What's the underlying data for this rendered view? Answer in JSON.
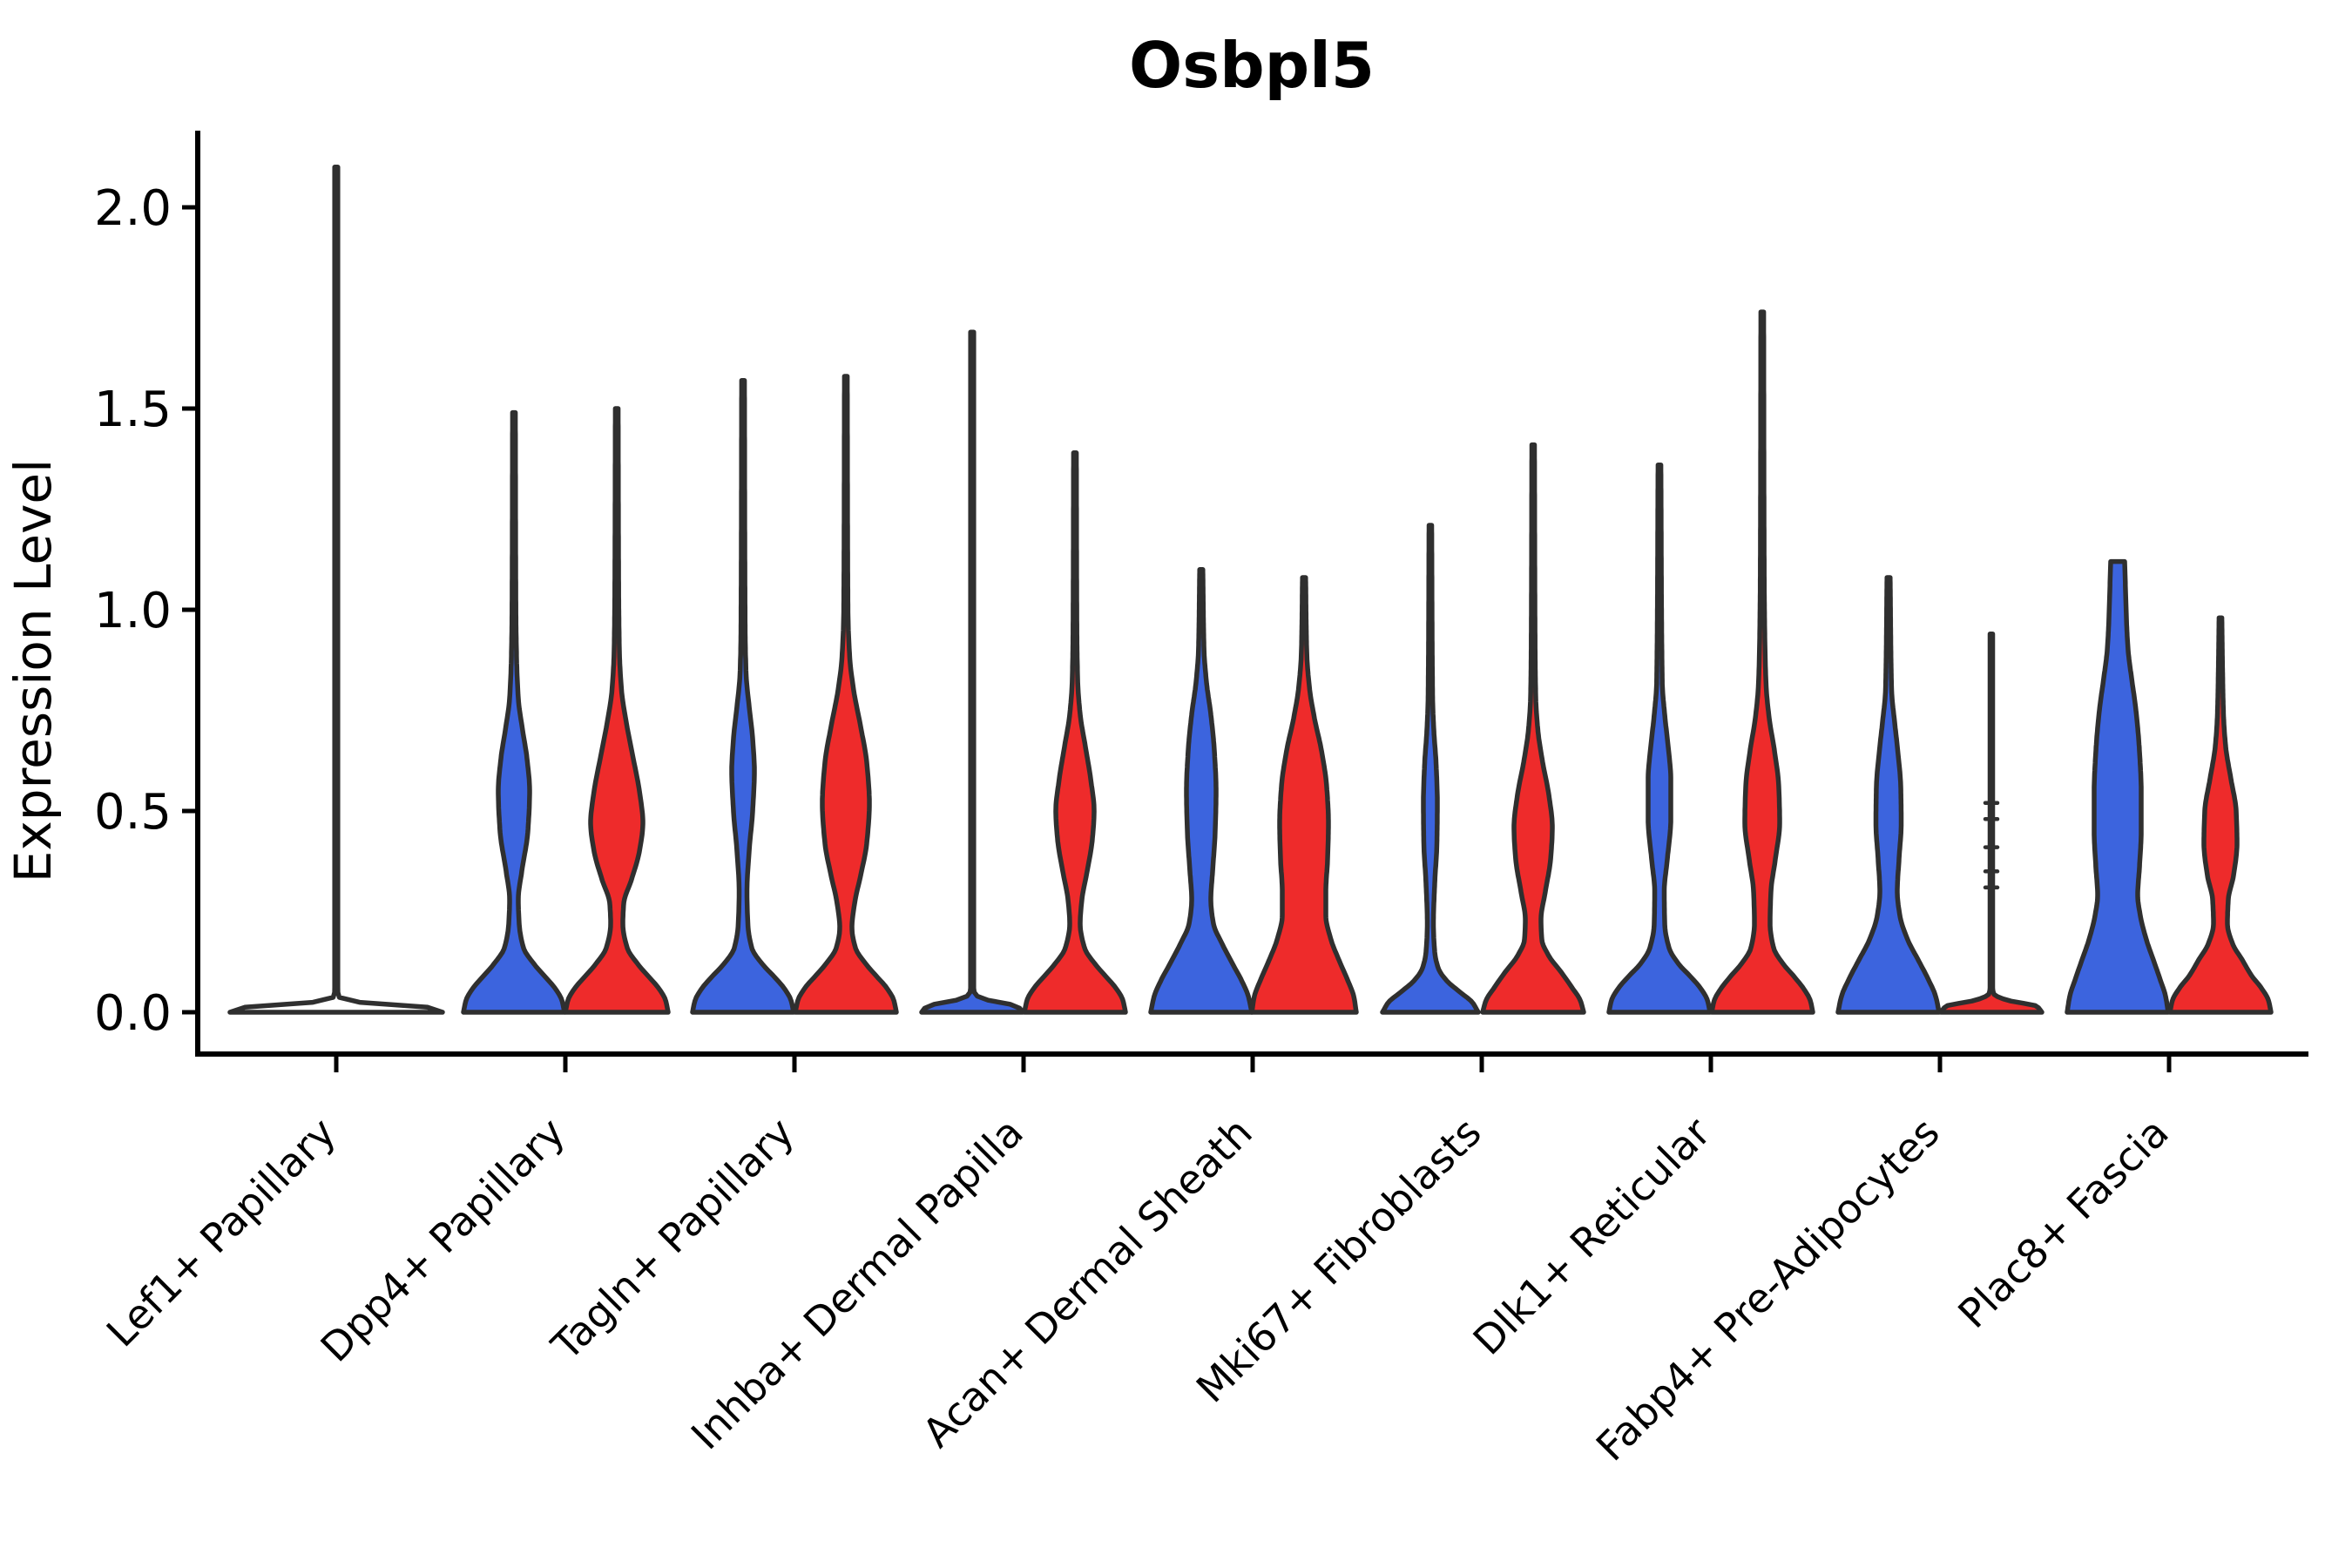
{
  "title": "Osbpl5",
  "y_axis": {
    "label": "Expression Level",
    "ticks": [
      "0.0",
      "0.5",
      "1.0",
      "1.5",
      "2.0"
    ]
  },
  "x_axis": {
    "categories": [
      "Lef1+ Papillary",
      "Dpp4+ Papillary",
      "Tagln+ Papillary",
      "Inhba+ Dermal Papilla",
      "Acan+ Dermal Sheath",
      "Mki67+ Fibroblasts",
      "Dlk1+ Reticular",
      "Fabp4+ Pre-Adipocytes",
      "Plac8+ Fascia"
    ]
  },
  "colors": {
    "blue": "#3C64DE",
    "red": "#EE2B2B",
    "outline": "#2F2F2F",
    "axis": "#000000"
  },
  "chart_data": {
    "type": "violin",
    "title": "Osbpl5",
    "xlabel": "",
    "ylabel": "Expression Level",
    "ylim": [
      -0.06,
      2.2
    ],
    "yticks": [
      0.0,
      0.5,
      1.0,
      1.5,
      2.0
    ],
    "grid": false,
    "legend": "none",
    "categories": [
      "Lef1+ Papillary",
      "Dpp4+ Papillary",
      "Tagln+ Papillary",
      "Inhba+ Dermal Papilla",
      "Acan+ Dermal Sheath",
      "Mki67+ Fibroblasts",
      "Dlk1+ Reticular",
      "Fabp4+ Pre-Adipocytes",
      "Plac8+ Fascia"
    ],
    "series": [
      {
        "name": "group-blue",
        "color": "#3C64DE",
        "max_values": [
          null,
          1.49,
          1.57,
          1.69,
          1.1,
          1.21,
          1.36,
          1.08,
          1.12
        ]
      },
      {
        "name": "group-red",
        "color": "#EE2B2B",
        "max_values": [
          null,
          1.5,
          1.58,
          1.39,
          1.08,
          1.41,
          1.74,
          0.94,
          0.98
        ]
      }
    ],
    "single_violin_max": {
      "Lef1+ Papillary": 2.1
    },
    "violins": [
      {
        "category": 0,
        "side": "single",
        "color": "none",
        "max": 2.1,
        "profile": [
          [
            0,
            122
          ],
          [
            0.012,
            106
          ],
          [
            0.025,
            26
          ],
          [
            0.04,
            2.2
          ],
          [
            0.06,
            1.8
          ],
          [
            2.1,
            1.8
          ]
        ]
      },
      {
        "category": 1,
        "side": "blue",
        "color": "blue",
        "max": 1.49,
        "profile": [
          [
            0,
            58
          ],
          [
            0.03,
            55
          ],
          [
            0.06,
            47
          ],
          [
            0.09,
            35
          ],
          [
            0.12,
            23
          ],
          [
            0.16,
            11
          ],
          [
            0.22,
            6
          ],
          [
            0.28,
            5
          ],
          [
            0.35,
            9
          ],
          [
            0.45,
            16
          ],
          [
            0.55,
            18
          ],
          [
            0.63,
            15
          ],
          [
            0.7,
            10
          ],
          [
            0.78,
            5
          ],
          [
            0.88,
            3
          ],
          [
            1.0,
            2.2
          ],
          [
            1.49,
            1.6
          ]
        ]
      },
      {
        "category": 1,
        "side": "red",
        "color": "red",
        "max": 1.5,
        "profile": [
          [
            0,
            59
          ],
          [
            0.03,
            56
          ],
          [
            0.06,
            48
          ],
          [
            0.09,
            36
          ],
          [
            0.12,
            24
          ],
          [
            0.16,
            12
          ],
          [
            0.22,
            7
          ],
          [
            0.27,
            8
          ],
          [
            0.33,
            17
          ],
          [
            0.4,
            26
          ],
          [
            0.47,
            30
          ],
          [
            0.55,
            26
          ],
          [
            0.63,
            19
          ],
          [
            0.72,
            11
          ],
          [
            0.8,
            5.5
          ],
          [
            0.9,
            3
          ],
          [
            1.05,
            2.2
          ],
          [
            1.5,
            1.6
          ]
        ]
      },
      {
        "category": 2,
        "side": "blue",
        "color": "blue",
        "max": 1.57,
        "profile": [
          [
            0,
            58
          ],
          [
            0.03,
            55
          ],
          [
            0.06,
            47
          ],
          [
            0.09,
            35
          ],
          [
            0.12,
            22
          ],
          [
            0.16,
            10
          ],
          [
            0.22,
            5.5
          ],
          [
            0.3,
            4.5
          ],
          [
            0.4,
            7
          ],
          [
            0.5,
            11
          ],
          [
            0.6,
            13
          ],
          [
            0.68,
            11
          ],
          [
            0.76,
            7
          ],
          [
            0.84,
            3.5
          ],
          [
            0.95,
            2.4
          ],
          [
            1.57,
            1.6
          ]
        ]
      },
      {
        "category": 2,
        "side": "red",
        "color": "red",
        "max": 1.58,
        "profile": [
          [
            0,
            58
          ],
          [
            0.03,
            55
          ],
          [
            0.06,
            47
          ],
          [
            0.09,
            35
          ],
          [
            0.12,
            23
          ],
          [
            0.16,
            11
          ],
          [
            0.21,
            7
          ],
          [
            0.27,
            10
          ],
          [
            0.34,
            17
          ],
          [
            0.42,
            24
          ],
          [
            0.52,
            27
          ],
          [
            0.62,
            24
          ],
          [
            0.71,
            17
          ],
          [
            0.8,
            9
          ],
          [
            0.88,
            4.5
          ],
          [
            1.0,
            2.4
          ],
          [
            1.58,
            1.6
          ]
        ]
      },
      {
        "category": 3,
        "side": "blue",
        "color": "blue",
        "max": 1.69,
        "profile": [
          [
            0,
            58
          ],
          [
            0.015,
            52
          ],
          [
            0.03,
            18
          ],
          [
            0.045,
            3
          ],
          [
            0.06,
            1.8
          ],
          [
            1.69,
            1.8
          ]
        ]
      },
      {
        "category": 3,
        "side": "red",
        "color": "red",
        "max": 1.39,
        "profile": [
          [
            0,
            58
          ],
          [
            0.03,
            55
          ],
          [
            0.06,
            47
          ],
          [
            0.09,
            35
          ],
          [
            0.12,
            23
          ],
          [
            0.16,
            11
          ],
          [
            0.22,
            6
          ],
          [
            0.28,
            8
          ],
          [
            0.35,
            14
          ],
          [
            0.43,
            20
          ],
          [
            0.5,
            22
          ],
          [
            0.58,
            18
          ],
          [
            0.66,
            12
          ],
          [
            0.74,
            6
          ],
          [
            0.82,
            3.2
          ],
          [
            0.95,
            2.2
          ],
          [
            1.39,
            1.6
          ]
        ]
      },
      {
        "category": 4,
        "side": "blue",
        "color": "blue",
        "max": 1.1,
        "profile": [
          [
            0,
            58
          ],
          [
            0.04,
            54
          ],
          [
            0.08,
            46
          ],
          [
            0.12,
            36
          ],
          [
            0.17,
            24
          ],
          [
            0.22,
            14
          ],
          [
            0.28,
            11
          ],
          [
            0.35,
            13
          ],
          [
            0.45,
            16
          ],
          [
            0.55,
            17
          ],
          [
            0.65,
            15
          ],
          [
            0.74,
            11
          ],
          [
            0.82,
            6
          ],
          [
            0.9,
            3.2
          ],
          [
            1.1,
            1.8
          ]
        ]
      },
      {
        "category": 4,
        "side": "red",
        "color": "red",
        "max": 1.08,
        "profile": [
          [
            0,
            60
          ],
          [
            0.04,
            57
          ],
          [
            0.08,
            50
          ],
          [
            0.13,
            40
          ],
          [
            0.18,
            31
          ],
          [
            0.24,
            25
          ],
          [
            0.3,
            25
          ],
          [
            0.38,
            27
          ],
          [
            0.47,
            28
          ],
          [
            0.56,
            26
          ],
          [
            0.65,
            20
          ],
          [
            0.73,
            12
          ],
          [
            0.81,
            6
          ],
          [
            0.9,
            3
          ],
          [
            1.08,
            1.8
          ]
        ]
      },
      {
        "category": 5,
        "side": "blue",
        "color": "blue",
        "max": 1.21,
        "profile": [
          [
            0,
            55
          ],
          [
            0.025,
            48
          ],
          [
            0.05,
            34
          ],
          [
            0.08,
            18
          ],
          [
            0.11,
            9
          ],
          [
            0.15,
            5
          ],
          [
            0.22,
            3.5
          ],
          [
            0.32,
            5
          ],
          [
            0.42,
            7.5
          ],
          [
            0.52,
            8
          ],
          [
            0.62,
            6.5
          ],
          [
            0.7,
            4
          ],
          [
            0.78,
            2.6
          ],
          [
            1.21,
            1.5
          ]
        ]
      },
      {
        "category": 5,
        "side": "red",
        "color": "red",
        "max": 1.41,
        "profile": [
          [
            0,
            58
          ],
          [
            0.03,
            54
          ],
          [
            0.06,
            45
          ],
          [
            0.1,
            32
          ],
          [
            0.14,
            18
          ],
          [
            0.18,
            10
          ],
          [
            0.23,
            9
          ],
          [
            0.3,
            14
          ],
          [
            0.38,
            20
          ],
          [
            0.46,
            22
          ],
          [
            0.54,
            18
          ],
          [
            0.62,
            11
          ],
          [
            0.7,
            5.5
          ],
          [
            0.78,
            3
          ],
          [
            0.92,
            2.2
          ],
          [
            1.41,
            1.5
          ]
        ]
      },
      {
        "category": 6,
        "side": "blue",
        "color": "blue",
        "max": 1.36,
        "profile": [
          [
            0,
            58
          ],
          [
            0.03,
            55
          ],
          [
            0.06,
            47
          ],
          [
            0.09,
            35
          ],
          [
            0.12,
            22
          ],
          [
            0.16,
            11
          ],
          [
            0.22,
            6
          ],
          [
            0.3,
            5.5
          ],
          [
            0.38,
            9
          ],
          [
            0.48,
            13
          ],
          [
            0.58,
            13
          ],
          [
            0.66,
            10
          ],
          [
            0.74,
            6
          ],
          [
            0.82,
            3.2
          ],
          [
            1.36,
            1.6
          ]
        ]
      },
      {
        "category": 6,
        "side": "red",
        "color": "red",
        "max": 1.74,
        "profile": [
          [
            0,
            58
          ],
          [
            0.03,
            55
          ],
          [
            0.06,
            47
          ],
          [
            0.09,
            36
          ],
          [
            0.12,
            24
          ],
          [
            0.16,
            13
          ],
          [
            0.22,
            9
          ],
          [
            0.3,
            10
          ],
          [
            0.38,
            15
          ],
          [
            0.47,
            20
          ],
          [
            0.56,
            19
          ],
          [
            0.65,
            14
          ],
          [
            0.73,
            8
          ],
          [
            0.81,
            4.5
          ],
          [
            0.92,
            3
          ],
          [
            1.1,
            2.2
          ],
          [
            1.74,
            1.6
          ]
        ]
      },
      {
        "category": 7,
        "side": "blue",
        "color": "blue",
        "max": 1.08,
        "profile": [
          [
            0,
            58
          ],
          [
            0.04,
            54
          ],
          [
            0.08,
            46
          ],
          [
            0.13,
            34
          ],
          [
            0.18,
            22
          ],
          [
            0.24,
            13
          ],
          [
            0.3,
            10
          ],
          [
            0.38,
            12
          ],
          [
            0.47,
            14.5
          ],
          [
            0.56,
            14
          ],
          [
            0.64,
            11
          ],
          [
            0.72,
            7
          ],
          [
            0.8,
            3.5
          ],
          [
            1.08,
            1.8
          ]
        ]
      },
      {
        "category": 7,
        "side": "red",
        "color": "red",
        "max": 0.94,
        "profile": [
          [
            0,
            58
          ],
          [
            0.015,
            52
          ],
          [
            0.03,
            18
          ],
          [
            0.045,
            3
          ],
          [
            0.06,
            1.5
          ],
          [
            0.94,
            1.5
          ]
        ],
        "points": [
          0.31,
          0.35,
          0.41,
          0.48,
          0.52
        ]
      },
      {
        "category": 8,
        "side": "blue",
        "color": "blue",
        "max": 1.12,
        "capped": true,
        "profile": [
          [
            0,
            58
          ],
          [
            0.04,
            55
          ],
          [
            0.08,
            49
          ],
          [
            0.13,
            41
          ],
          [
            0.18,
            33
          ],
          [
            0.24,
            26
          ],
          [
            0.29,
            23
          ],
          [
            0.36,
            25
          ],
          [
            0.45,
            27
          ],
          [
            0.55,
            27
          ],
          [
            0.65,
            25
          ],
          [
            0.75,
            21
          ],
          [
            0.83,
            16
          ],
          [
            0.9,
            12
          ],
          [
            0.98,
            10
          ],
          [
            1.05,
            9
          ],
          [
            1.12,
            8
          ]
        ]
      },
      {
        "category": 8,
        "side": "red",
        "color": "red",
        "max": 0.98,
        "profile": [
          [
            0,
            58
          ],
          [
            0.03,
            55
          ],
          [
            0.06,
            47
          ],
          [
            0.09,
            36
          ],
          [
            0.13,
            25
          ],
          [
            0.17,
            14
          ],
          [
            0.22,
            8
          ],
          [
            0.28,
            9
          ],
          [
            0.34,
            15
          ],
          [
            0.42,
            19
          ],
          [
            0.5,
            18
          ],
          [
            0.58,
            12
          ],
          [
            0.66,
            6
          ],
          [
            0.74,
            3.5
          ],
          [
            0.85,
            2.4
          ],
          [
            0.98,
            1.6
          ]
        ]
      }
    ]
  }
}
